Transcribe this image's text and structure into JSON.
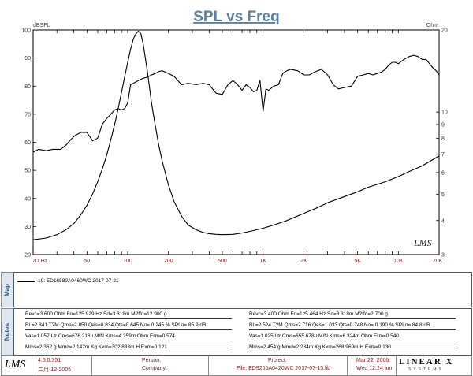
{
  "chart_data": {
    "type": "line",
    "title": "SPL vs Freq",
    "ylabel_left": "dBSPL",
    "ylabel_right": "Ohm",
    "x_scale": "log",
    "xlim": [
      20,
      20000
    ],
    "ylim_left": [
      20,
      100
    ],
    "ylim_right": [
      3,
      20
    ],
    "right_axis_scale": "log",
    "grid": false,
    "x_tick_labels": [
      "20",
      "Hz",
      "50",
      "100",
      "200",
      "500",
      "1K",
      "2K",
      "5K",
      "10K",
      "20K"
    ],
    "y_left_tick_labels": [
      "100",
      "90",
      "80",
      "70",
      "60",
      "50",
      "40",
      "30",
      "20"
    ],
    "y_right_tick_labels": [
      "20",
      "10",
      "9",
      "8",
      "7",
      "6",
      "5",
      "4",
      "3"
    ],
    "series": [
      {
        "name": "SPL",
        "axis": "left",
        "color": "#000000",
        "x": [
          20,
          22,
          25,
          28,
          32,
          35,
          38,
          41,
          45,
          50,
          55,
          60,
          65,
          70,
          75,
          80,
          85,
          90,
          95,
          100,
          105,
          110,
          120,
          130,
          140,
          150,
          160,
          170,
          180,
          190,
          200,
          220,
          250,
          280,
          320,
          360,
          400,
          450,
          500,
          550,
          600,
          650,
          700,
          750,
          800,
          850,
          900,
          950,
          1000,
          1050,
          1100,
          1200,
          1300,
          1400,
          1500,
          1600,
          1800,
          2000,
          2200,
          2400,
          2700,
          3000,
          3300,
          3600,
          4000,
          4500,
          5000,
          5500,
          6000,
          6500,
          7000,
          7500,
          8000,
          8500,
          9000,
          9500,
          10000,
          11000,
          12000,
          13000,
          14000,
          15000,
          16000,
          17000,
          18000,
          19000,
          20000
        ],
        "y": [
          56.5,
          57.5,
          57.0,
          57.5,
          57.5,
          59.0,
          61.0,
          62.5,
          63.5,
          63.5,
          60.5,
          61.5,
          66.5,
          68.5,
          70.0,
          71.5,
          72.0,
          71.5,
          72.0,
          74.0,
          80.5,
          81.0,
          82.0,
          82.8,
          83.2,
          84.0,
          84.5,
          85.2,
          85.5,
          85.0,
          84.5,
          83.5,
          80.5,
          81.0,
          80.5,
          81.0,
          80.5,
          77.5,
          77.0,
          80.5,
          82.0,
          80.5,
          78.5,
          80.5,
          79.5,
          78.0,
          78.5,
          82.0,
          71.0,
          79.0,
          78.5,
          80.0,
          80.5,
          84.5,
          85.5,
          86.0,
          85.5,
          84.0,
          84.0,
          85.0,
          86.0,
          84.0,
          80.5,
          79.0,
          79.5,
          80.0,
          83.5,
          84.0,
          84.5,
          84.0,
          84.5,
          85.0,
          86.0,
          87.5,
          88.5,
          88.5,
          88.0,
          89.5,
          90.5,
          91.0,
          90.5,
          89.5,
          89.5,
          88.0,
          86.5,
          85.5,
          84.0
        ]
      },
      {
        "name": "Impedance",
        "axis": "right",
        "color": "#000000",
        "x": [
          20,
          25,
          30,
          35,
          40,
          45,
          50,
          55,
          60,
          65,
          70,
          75,
          80,
          85,
          90,
          95,
          100,
          105,
          110,
          115,
          120,
          125,
          130,
          140,
          150,
          160,
          170,
          180,
          200,
          220,
          250,
          280,
          320,
          360,
          400,
          450,
          500,
          600,
          700,
          800,
          1000,
          1200,
          1500,
          2000,
          2500,
          3000,
          4000,
          5000,
          6000,
          8000,
          10000,
          12000,
          15000,
          20000
        ],
        "y": [
          3.4,
          3.45,
          3.55,
          3.7,
          3.9,
          4.2,
          4.55,
          5.0,
          5.55,
          6.2,
          6.95,
          7.9,
          9.0,
          10.3,
          11.8,
          13.5,
          15.2,
          17.0,
          18.5,
          19.4,
          19.8,
          19.4,
          17.8,
          14.0,
          10.8,
          8.9,
          7.5,
          6.6,
          5.4,
          4.7,
          4.15,
          3.85,
          3.7,
          3.62,
          3.58,
          3.56,
          3.55,
          3.56,
          3.6,
          3.65,
          3.75,
          3.85,
          4.0,
          4.25,
          4.45,
          4.65,
          4.9,
          5.1,
          5.3,
          5.55,
          5.8,
          6.05,
          6.35,
          6.9
        ]
      }
    ],
    "watermark": "LMS"
  },
  "map": {
    "label": "Map",
    "legend_entry": "19: ED16580A0460WC 2017-07-21"
  },
  "notes": {
    "label": "Notes",
    "left": [
      "Revc=3.600 Ohm  Fo=125.929 Hz  Sd=3.318m M?ffd=12.900 g",
      "BL=2.841 T?M  Qms=2.850  Qes=0.834  Qts=0.645  No= 0.245 %  SPLo= 85.9 dB",
      "Vas=1.057 Ltr  Cms=676.218u M/N  Kms=4.259m Ohm  Erm=0.574",
      "Mms=2.362 g  Mmd=2.142m Kg  Kxm=302.833m H  Exm=0.121"
    ],
    "right": [
      "Revc=3.400 Ohm  Fo=125.464 Hz  Sd=3.318m M?ffd=2.700 g",
      "BL=2.524 T?M  Qms=2.716  Qes=1.033  Qts=0.748  No= 0.190 %  SPLo= 84.8 dB",
      "Vas=1.025 Ltr  Cms=655.678u M/N  Kms=6.324m Ohm  Erm=0.540",
      "Mms=2.454 g  Mmd=2.234m Kg  Kxm=268.969m H  Exm=0.130"
    ]
  },
  "footer": {
    "logo": "LMS",
    "version": "4.5.0.351",
    "date_left": "二月-12-2005",
    "person_label": "Person:",
    "company_label": "Company:",
    "project_label": "Project:",
    "file_label": "File: ED9255A0420WC 2017-07-15.lib",
    "date_right": "Mar 22, 2006",
    "time_right": "Wed 12:24 am",
    "brand": "LINEAR X",
    "brand_sub": "SYSTEMS"
  }
}
